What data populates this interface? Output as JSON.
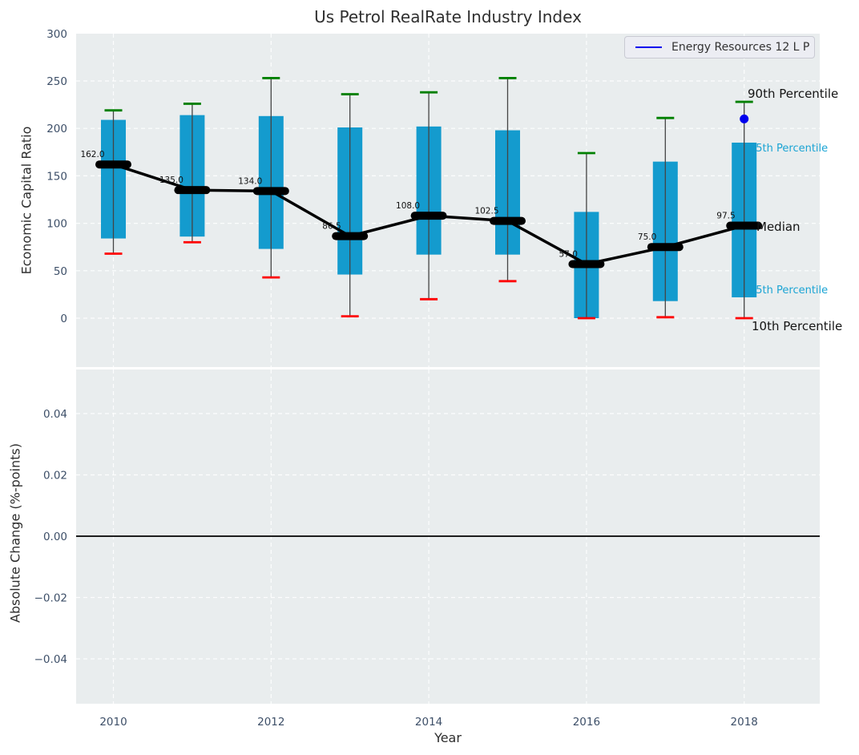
{
  "figure": {
    "title": "Us Petrol RealRate Industry Index",
    "top_ylabel": "Economic Capital Ratio",
    "bottom_ylabel": "Absolute Change (%-points)",
    "xlabel": "Year"
  },
  "legend": {
    "label": "Energy Resources 12 L P"
  },
  "annotations": {
    "p90": "90th Percentile",
    "p75": "75th Percentile",
    "median": "Median",
    "p25": "25th Percentile",
    "p10": "10th Percentile"
  },
  "colors": {
    "bar": "#149bce",
    "cap_high": "#008000",
    "cap_low": "#ff0000",
    "median": "#000000",
    "company": "#0000ee",
    "annotation_cyan": "#1ba4d4",
    "plot_bg": "#e9edee",
    "tick": "#3d4f68",
    "grid": "#ffffff",
    "whisker": "#444444",
    "zero_line": "#000000"
  },
  "chart_data": [
    {
      "type": "boxplot",
      "title": "Us Petrol RealRate Industry Index",
      "xlabel": "Year",
      "ylabel": "Economic Capital Ratio",
      "x": [
        2010,
        2011,
        2012,
        2013,
        2014,
        2015,
        2016,
        2017,
        2018
      ],
      "series": [
        {
          "name": "90th Percentile",
          "values": [
            219,
            226,
            253,
            236,
            238,
            253,
            174,
            211,
            228
          ]
        },
        {
          "name": "75th Percentile",
          "values": [
            209,
            214,
            213,
            201,
            202,
            198,
            112,
            165,
            185
          ]
        },
        {
          "name": "Median",
          "values": [
            162.0,
            135.0,
            134.0,
            86.5,
            108.0,
            102.5,
            57.0,
            75.0,
            97.5
          ]
        },
        {
          "name": "25th Percentile",
          "values": [
            84,
            86,
            73,
            46,
            67,
            67,
            0,
            18,
            22
          ]
        },
        {
          "name": "10th Percentile",
          "values": [
            68,
            80,
            43,
            2,
            20,
            39,
            0,
            1,
            0
          ]
        }
      ],
      "company_series": {
        "name": "Energy Resources 12 L P",
        "points": [
          {
            "x": 2018,
            "y": 210
          }
        ]
      },
      "yticks": [
        0,
        50,
        100,
        150,
        200,
        250,
        300
      ],
      "xticks": [
        2010,
        2012,
        2014,
        2016,
        2018
      ],
      "ylim": [
        -51.5,
        300.5
      ],
      "xlim": [
        2009.53,
        2018.96
      ],
      "grid": true,
      "legend_position": "upper right"
    },
    {
      "type": "line",
      "xlabel": "Year",
      "ylabel": "Absolute Change (%-points)",
      "x": [],
      "values": [],
      "yticks": [
        0.04,
        0.02,
        0.0,
        -0.02,
        -0.04
      ],
      "xticks": [
        2010,
        2012,
        2014,
        2016,
        2018
      ],
      "ylim": [
        -0.0546,
        0.0544
      ],
      "zero_line": 0.0,
      "grid": true
    }
  ]
}
